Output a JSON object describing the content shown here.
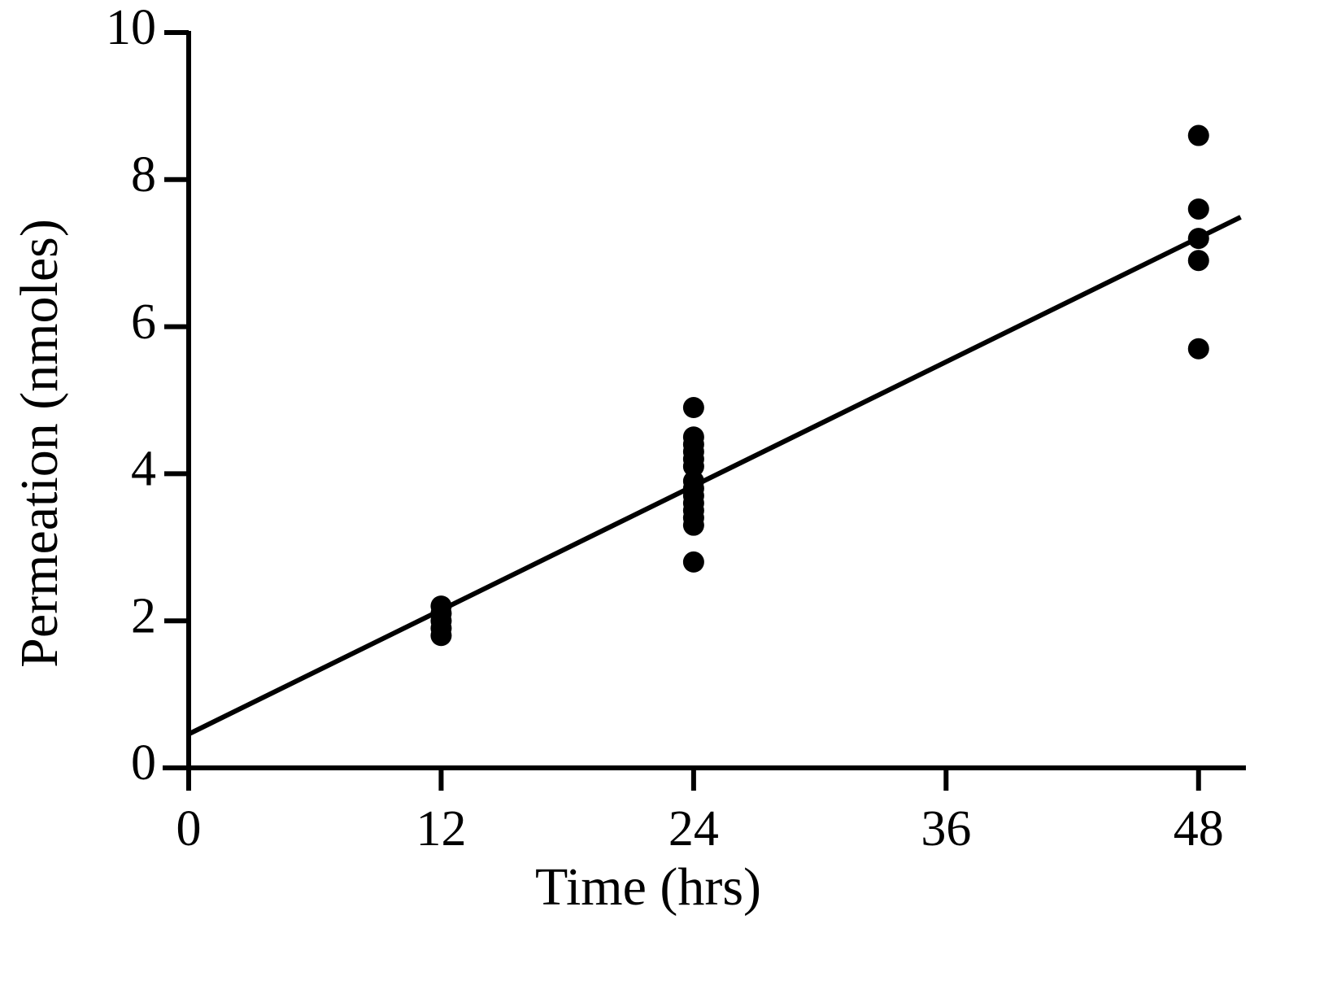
{
  "chart_data": {
    "type": "scatter",
    "x_label": "Time (hrs)",
    "y_label": "Permeation (nmoles)",
    "xlim": [
      0,
      50
    ],
    "ylim": [
      0,
      10
    ],
    "xticks": [
      0,
      12,
      24,
      36,
      48
    ],
    "yticks": [
      0,
      2,
      4,
      6,
      8,
      10
    ],
    "series": [
      {
        "color": "#000000",
        "x": [
          12,
          12,
          12,
          12,
          12,
          24,
          24,
          24,
          24,
          24,
          24,
          24,
          24,
          24,
          24,
          24,
          24,
          24,
          24,
          48,
          48,
          48,
          48,
          48
        ],
        "values": [
          2.2,
          2.1,
          2.0,
          1.9,
          1.8,
          4.9,
          4.5,
          4.4,
          4.3,
          4.2,
          4.1,
          3.9,
          3.8,
          3.7,
          3.6,
          3.5,
          3.4,
          3.3,
          2.8,
          8.6,
          7.6,
          7.2,
          6.9,
          5.7
        ]
      }
    ],
    "fit": {
      "color": "#000000",
      "x": [
        0,
        50
      ],
      "values": [
        0.46,
        7.49
      ]
    }
  }
}
